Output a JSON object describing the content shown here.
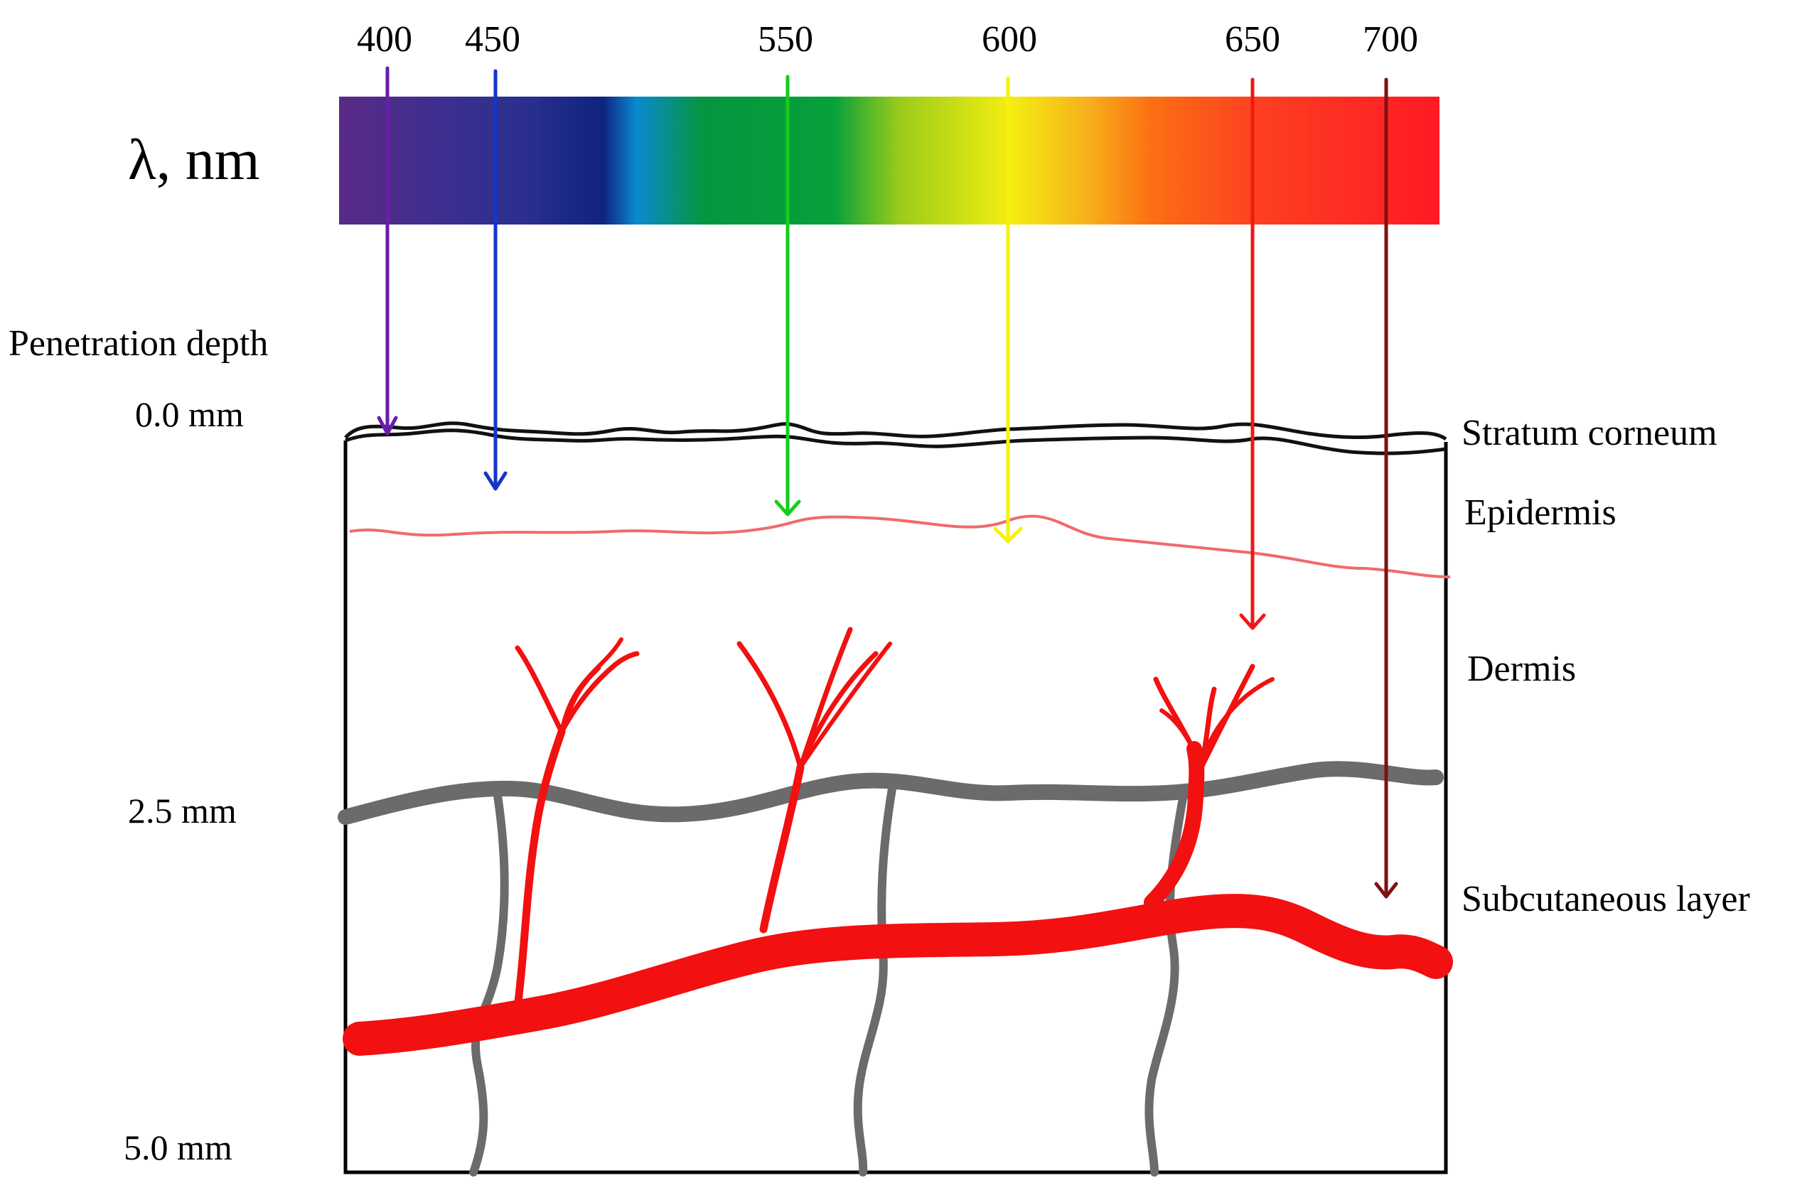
{
  "spectrum": {
    "axis_label": "λ, nm",
    "colors": [
      "#5a2a86",
      "#3d2f8f",
      "#2a2f8d",
      "#0f237f",
      "#0b89d0",
      "#05963f",
      "#07a13a",
      "#9ccc1a",
      "#f4ee12",
      "#f7b01c",
      "#fb6e13",
      "#fd3e21",
      "#ff1a25"
    ]
  },
  "wavelengths": [
    {
      "label": "400",
      "color": "#6a1ea8",
      "depth_label": "0.0 mm"
    },
    {
      "label": "450",
      "color": "#1536c8",
      "depth_label": ""
    },
    {
      "label": "550",
      "color": "#16cc1d",
      "depth_label": ""
    },
    {
      "label": "600",
      "color": "#f6f20a",
      "depth_label": ""
    },
    {
      "label": "650",
      "color": "#f01818",
      "depth_label": ""
    },
    {
      "label": "700",
      "color": "#7f1010",
      "depth_label": ""
    }
  ],
  "depth_axis": {
    "title": "Penetration depth",
    "ticks": [
      "0.0 mm",
      "2.5 mm",
      "5.0 mm"
    ]
  },
  "layers": [
    "Stratum corneum",
    "Epidermis",
    "Dermis",
    "Subcutaneous layer"
  ],
  "colors": {
    "stratum": "#000000",
    "epidermis_line": "#f06565",
    "vessel": "#f21010",
    "nerve": "#6b6b6b",
    "frame": "#000000"
  }
}
